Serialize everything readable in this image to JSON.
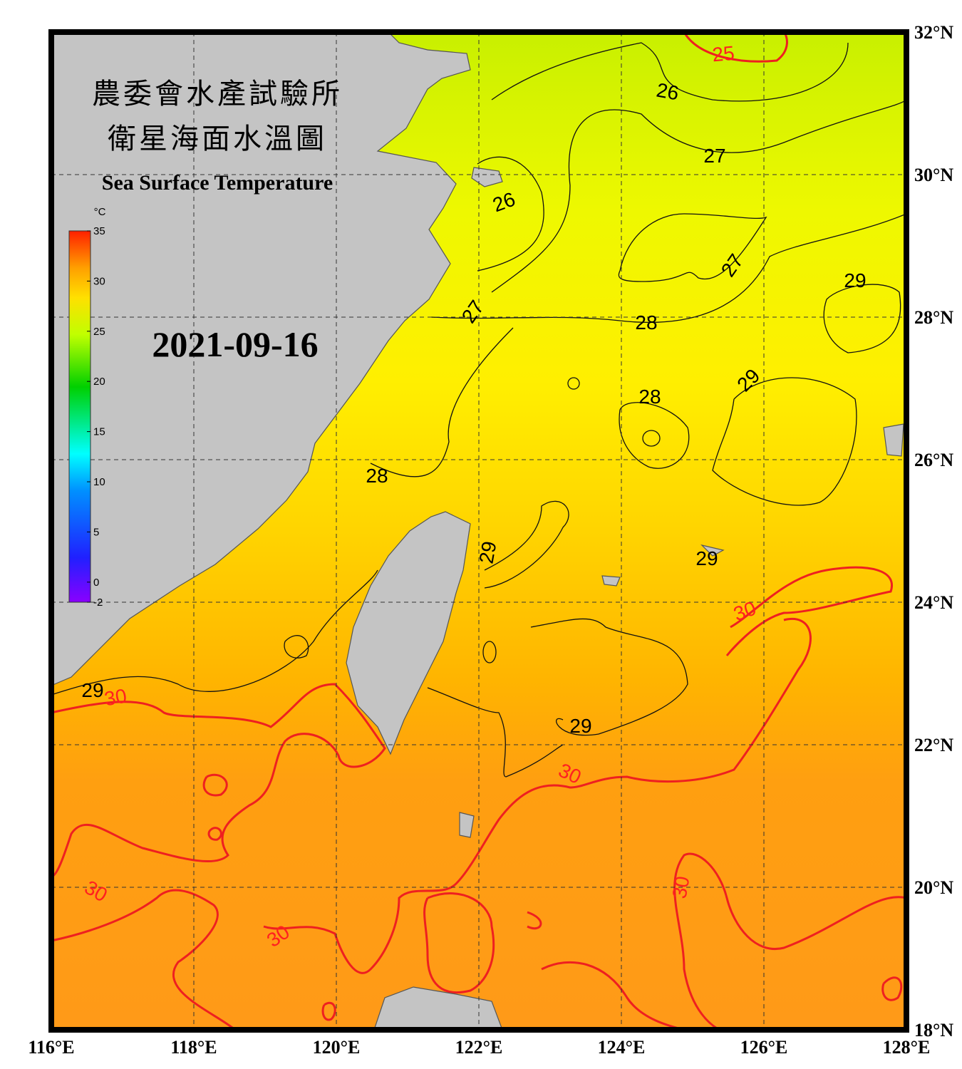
{
  "header": {
    "title_zh_1": "農委會水產試驗所",
    "title_zh_2": "衛星海面水溫圖",
    "title_en": "Sea Surface Temperature",
    "date": "2021-09-16"
  },
  "colorbar": {
    "unit": "°C",
    "lim": [
      -2,
      35
    ],
    "ticks": [
      -2,
      0,
      5,
      10,
      15,
      20,
      25,
      30,
      35
    ]
  },
  "axes": {
    "lon_lim": [
      116,
      128
    ],
    "lat_lim": [
      18,
      32
    ],
    "lon_ticks": [
      {
        "value": 116,
        "label": "116°E"
      },
      {
        "value": 118,
        "label": "118°E"
      },
      {
        "value": 120,
        "label": "120°E"
      },
      {
        "value": 122,
        "label": "122°E"
      },
      {
        "value": 124,
        "label": "124°E"
      },
      {
        "value": 126,
        "label": "126°E"
      },
      {
        "value": 128,
        "label": "128°E"
      }
    ],
    "lat_ticks": [
      {
        "value": 32,
        "label": "32°N"
      },
      {
        "value": 30,
        "label": "30°N"
      },
      {
        "value": 28,
        "label": "28°N"
      },
      {
        "value": 26,
        "label": "26°N"
      },
      {
        "value": 24,
        "label": "24°N"
      },
      {
        "value": 22,
        "label": "22°N"
      },
      {
        "value": 20,
        "label": "20°N"
      },
      {
        "value": 18,
        "label": "18°N"
      }
    ]
  },
  "contour_labels": [
    {
      "value": 25,
      "color": "#ff2020"
    },
    {
      "value": 26,
      "color": "#000000"
    },
    {
      "value": 27,
      "color": "#000000"
    },
    {
      "value": 26,
      "color": "#000000"
    },
    {
      "value": 27,
      "color": "#000000"
    },
    {
      "value": 29,
      "color": "#000000"
    },
    {
      "value": 27,
      "color": "#000000"
    },
    {
      "value": 28,
      "color": "#000000"
    },
    {
      "value": 29,
      "color": "#000000"
    },
    {
      "value": 28,
      "color": "#000000"
    },
    {
      "value": 28,
      "color": "#000000"
    },
    {
      "value": 29,
      "color": "#000000"
    },
    {
      "value": 29,
      "color": "#000000"
    },
    {
      "value": 30,
      "color": "#ff2020"
    },
    {
      "value": 29,
      "color": "#000000"
    },
    {
      "value": 30,
      "color": "#ff2020"
    },
    {
      "value": 29,
      "color": "#000000"
    },
    {
      "value": 30,
      "color": "#ff2020"
    },
    {
      "value": 30,
      "color": "#ff2020"
    },
    {
      "value": 30,
      "color": "#ff2020"
    },
    {
      "value": 30,
      "color": "#ff2020"
    }
  ]
}
